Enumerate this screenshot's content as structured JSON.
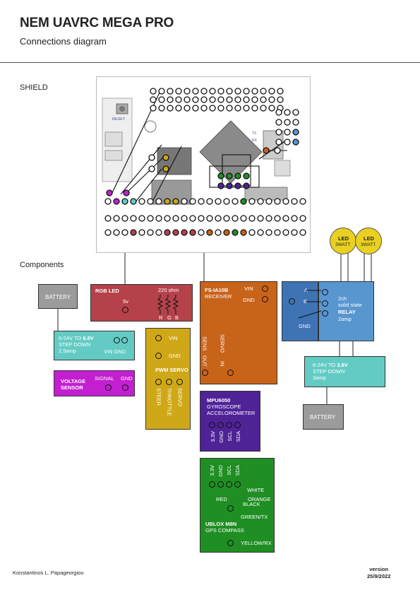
{
  "header": {
    "title": "NEM UAVRC MEGA PRO",
    "subtitle": "Connections diagram"
  },
  "sections": {
    "shield": "SHIELD",
    "components": "Components"
  },
  "shield": {
    "reset_label": "RESET",
    "tx": "TX",
    "rx": "RX"
  },
  "battery_left": {
    "label": "BATTERY"
  },
  "battery_right": {
    "label": "BATTERY"
  },
  "rgb_led": {
    "title": "RGB LED",
    "resistor": "220 ohm",
    "v5": "5v",
    "r": "R",
    "g": "G",
    "b": "B"
  },
  "stepdown_68": {
    "line1_prefix": "6-24V TO ",
    "line1_value": "6.8V",
    "line2": "STEP DOWN",
    "line3": "2.5amp",
    "pins": "VIN GND"
  },
  "voltage_sensor": {
    "name_line1": "VOLTAGE",
    "name_line2": "SENSOR",
    "signal": "SIGNAL",
    "gnd": "GND"
  },
  "pwm_servo": {
    "vin": "VIN",
    "gnd": "GND",
    "title": "PWM SERVO",
    "steer": "STEER",
    "throttle": "THROTTLE",
    "servo": "SERVO"
  },
  "receiver": {
    "model": "FS-IA10B",
    "type": "RECEIVER",
    "vin": "VIN",
    "gnd": "GND",
    "sens": "SENS",
    "out": "OUT",
    "servo": "SERVO",
    "in": "IN"
  },
  "relay": {
    "a": "A",
    "b": "B",
    "gnd": "GND",
    "line1": "2ch",
    "line2": "solid state",
    "title": "RELAY",
    "line4": "2amp"
  },
  "led1": {
    "name": "LED",
    "power": "3WATT"
  },
  "led2": {
    "name": "LED",
    "power": "3WATT"
  },
  "stepdown_38": {
    "line1_prefix": "6-24V TO ",
    "line1_value": "3.8V",
    "line2": "STEP DOWN",
    "line3": "3amp"
  },
  "mpu": {
    "model": "MPU6050",
    "line2": "GYROSCOPE",
    "line3": "ACCELOROMETER",
    "pins": [
      "3.3V",
      "GND",
      "SCL",
      "SDA"
    ]
  },
  "gps": {
    "pins": [
      "3.3V",
      "GND",
      "SCL",
      "SDA"
    ],
    "white": "WHITE",
    "orange": "ORANGE",
    "red": "RED",
    "black": "BLACK",
    "green": "GREEN/TX",
    "model": "UBLOX M8N",
    "type": "GPS COMPASS",
    "yellow": "YELLOW/RX"
  },
  "footer": {
    "author": "Konstantinos L. Papageorgiou",
    "version_label": "version",
    "date": "25/9/2022"
  },
  "colors": {
    "rgb_led": "#b5424a",
    "stepdown": "#63cbc4",
    "voltage_sensor": "#c21fd0",
    "pwm_servo": "#cfa817",
    "receiver": "#c8631a",
    "relay_dark": "#3e74b4",
    "relay_light": "#5896d0",
    "mpu": "#4f2296",
    "gps": "#1f8e23",
    "battery": "#9b9b9b",
    "led": "#ead020"
  }
}
